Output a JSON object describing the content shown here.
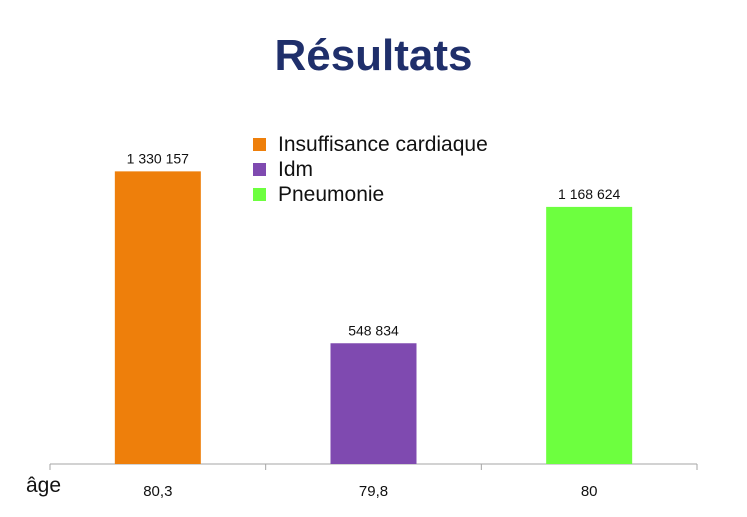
{
  "page": {
    "title": "Résultats",
    "x_prefix": "âge"
  },
  "legend": [
    {
      "label": "Insuffisance cardiaque",
      "color": "#ee7f0b"
    },
    {
      "label": "Idm",
      "color": "#7f4ab0"
    },
    {
      "label": "Pneumonie",
      "color": "#6dff3f"
    }
  ],
  "chart_data": {
    "type": "bar",
    "title": "Résultats",
    "categories": [
      "80,3",
      "79,8",
      "80"
    ],
    "values": [
      1330157,
      548834,
      1168624
    ],
    "value_labels": [
      "1 330 157",
      "548 834",
      "1 168 624"
    ],
    "colors": [
      "#ee7f0b",
      "#7f4ab0",
      "#6dff3f"
    ],
    "series": [
      {
        "name": "Insuffisance cardiaque",
        "values": [
          1330157,
          null,
          null
        ]
      },
      {
        "name": "Idm",
        "values": [
          null,
          548834,
          null
        ]
      },
      {
        "name": "Pneumonie",
        "values": [
          null,
          null,
          1168624
        ]
      }
    ],
    "xlabel": "âge",
    "ylabel": "",
    "ylim": [
      0,
      1600000
    ],
    "grid": false,
    "legend_position": "top-center"
  }
}
